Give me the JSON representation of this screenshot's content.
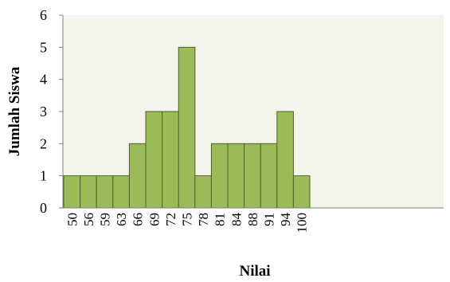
{
  "chart_data": {
    "type": "bar",
    "xlabel": "Nilai",
    "ylabel": "Jumlah Siswa",
    "categories": [
      "50",
      "56",
      "59",
      "63",
      "66",
      "69",
      "72",
      "75",
      "78",
      "81",
      "84",
      "88",
      "91",
      "94",
      "100"
    ],
    "values": [
      1,
      1,
      1,
      1,
      2,
      3,
      3,
      5,
      1,
      2,
      2,
      2,
      2,
      3,
      1
    ],
    "ylim": [
      0,
      6
    ],
    "yticks": [
      "0",
      "1",
      "2",
      "3",
      "4",
      "5",
      "6"
    ],
    "grid": false,
    "colors": {
      "bar_fill": "#9bbb59",
      "bar_stroke": "#4f6228",
      "plot_background": "#f4f5ea",
      "axis": "#7f7f7f"
    }
  }
}
